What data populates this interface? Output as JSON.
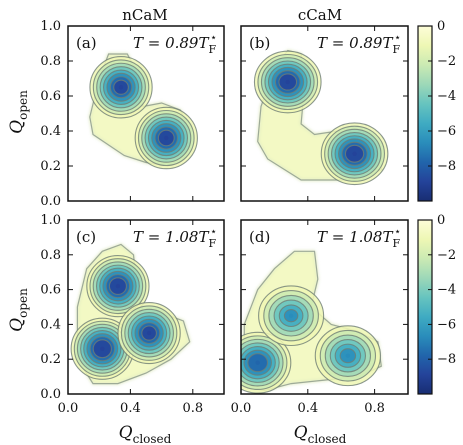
{
  "chart_data": {
    "type": "heatmap",
    "columns": [
      "nCaM",
      "cCaM"
    ],
    "xlabel": {
      "main": "Q",
      "sub": "closed"
    },
    "ylabel": {
      "main": "Q",
      "sub": "open"
    },
    "xlim": [
      0.0,
      1.0
    ],
    "ylim": [
      0.0,
      1.0
    ],
    "xticks": [
      "0.0",
      "0.4",
      "0.8"
    ],
    "yticks": [
      "0.0",
      "0.2",
      "0.4",
      "0.6",
      "0.8",
      "1.0"
    ],
    "colorbar": {
      "range": [
        -10,
        0
      ],
      "ticks": [
        "0",
        "−2",
        "−4",
        "−6",
        "−8"
      ],
      "tick_values": [
        0,
        -2,
        -4,
        -6,
        -8
      ],
      "colors": [
        "#fdfdd9",
        "#eef7b4",
        "#cbeab3",
        "#9dd8b8",
        "#67c4bf",
        "#3fabc2",
        "#2a8dbb",
        "#2165ab",
        "#24439a",
        "#182d72"
      ]
    },
    "panels": [
      {
        "label": "(a)",
        "column": "nCaM",
        "temperature": "T = 0.89T",
        "minima": [
          {
            "x": 0.34,
            "y": 0.65,
            "depth": -8.3
          },
          {
            "x": 0.63,
            "y": 0.36,
            "depth": -8.5
          }
        ]
      },
      {
        "label": "(b)",
        "column": "cCaM",
        "temperature": "T = 0.89T",
        "minima": [
          {
            "x": 0.28,
            "y": 0.68,
            "depth": -8.6
          },
          {
            "x": 0.68,
            "y": 0.27,
            "depth": -8.7
          }
        ]
      },
      {
        "label": "(c)",
        "column": "nCaM",
        "temperature": "T = 1.08T",
        "minima": [
          {
            "x": 0.32,
            "y": 0.62,
            "depth": -8.7
          },
          {
            "x": 0.22,
            "y": 0.26,
            "depth": -8.9
          },
          {
            "x": 0.52,
            "y": 0.35,
            "depth": -8.3
          }
        ]
      },
      {
        "label": "(d)",
        "column": "cCaM",
        "temperature": "T = 1.08T",
        "minima": [
          {
            "x": 0.1,
            "y": 0.18,
            "depth": -7.8
          },
          {
            "x": 0.3,
            "y": 0.45,
            "depth": -6.0
          },
          {
            "x": 0.64,
            "y": 0.22,
            "depth": -6.2
          }
        ]
      }
    ],
    "temperature_unit_sub": "F",
    "temperature_unit_sup": "⋆"
  }
}
